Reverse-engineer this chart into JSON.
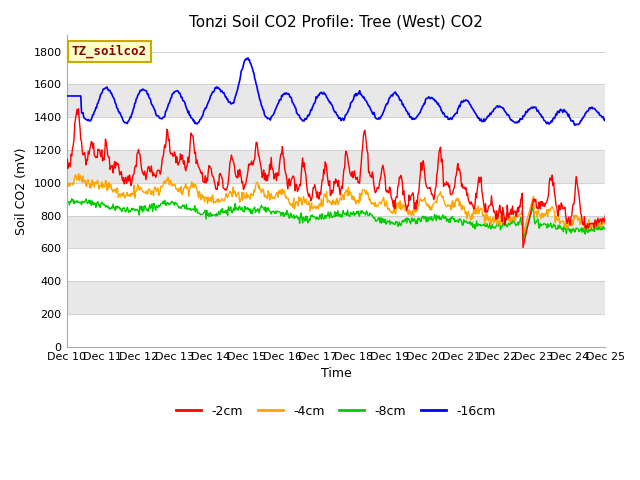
{
  "title": "Tonzi Soil CO2 Profile: Tree (West) CO2",
  "xlabel": "Time",
  "ylabel": "Soil CO2 (mV)",
  "ylim": [
    0,
    1900
  ],
  "yticks": [
    0,
    200,
    400,
    600,
    800,
    1000,
    1200,
    1400,
    1600,
    1800
  ],
  "x_labels": [
    "Dec 10",
    "Dec 11",
    "Dec 12",
    "Dec 13",
    "Dec 14",
    "Dec 15",
    "Dec 16",
    "Dec 17",
    "Dec 18",
    "Dec 19",
    "Dec 20",
    "Dec 21",
    "Dec 22",
    "Dec 23",
    "Dec 24",
    "Dec 25"
  ],
  "watermark_text": "TZ_soilco2",
  "colors": {
    "2cm": "#ff0000",
    "4cm": "#ffa500",
    "8cm": "#00cc00",
    "16cm": "#0000ff"
  },
  "legend_labels": [
    "-2cm",
    "-4cm",
    "-8cm",
    "-16cm"
  ],
  "bg_light": "#ffffff",
  "bg_dark": "#e8e8e8",
  "title_fontsize": 11,
  "axis_fontsize": 9,
  "tick_fontsize": 8,
  "watermark_color": "#8b0000",
  "watermark_bg": "#ffffcc",
  "watermark_edge": "#ccaa00"
}
